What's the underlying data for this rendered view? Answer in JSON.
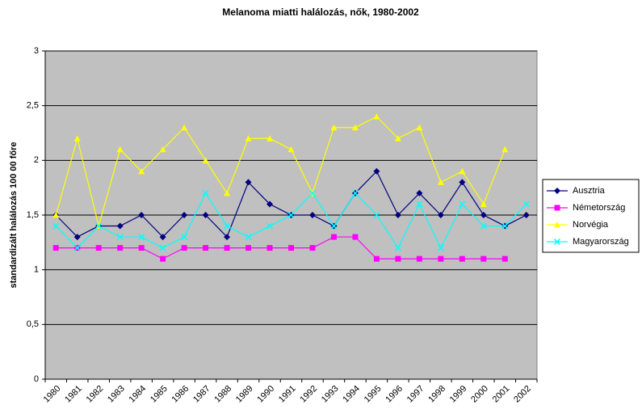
{
  "chart_data": {
    "type": "line",
    "title": "Melanoma miatti halálozás, nők, 1980-2002",
    "y_label": "standardizált halálozás 100 00 főre",
    "categories": [
      "1980",
      "1981",
      "1982",
      "1983",
      "1984",
      "1985",
      "1986",
      "1987",
      "1988",
      "1989",
      "1990",
      "1991",
      "1992",
      "1993",
      "1994",
      "1995",
      "1996",
      "1997",
      "1998",
      "1999",
      "2000",
      "2001",
      "2002"
    ],
    "series": [
      {
        "name": "Ausztria",
        "color": "#000080",
        "marker": "diamond",
        "values": [
          1.5,
          1.3,
          1.4,
          1.4,
          1.5,
          1.3,
          1.5,
          1.5,
          1.3,
          1.8,
          1.6,
          1.5,
          1.5,
          1.4,
          1.7,
          1.9,
          1.5,
          1.7,
          1.5,
          1.8,
          1.5,
          1.4,
          1.5
        ]
      },
      {
        "name": "Németország",
        "color": "#ff00ff",
        "marker": "square",
        "values": [
          1.2,
          1.2,
          1.2,
          1.2,
          1.2,
          1.1,
          1.2,
          1.2,
          1.2,
          1.2,
          1.2,
          1.2,
          1.2,
          1.3,
          1.3,
          1.1,
          1.1,
          1.1,
          1.1,
          1.1,
          1.1,
          1.1,
          null
        ]
      },
      {
        "name": "Norvégia",
        "color": "#ffff00",
        "marker": "triangle",
        "values": [
          1.5,
          2.2,
          1.4,
          2.1,
          1.9,
          2.1,
          2.3,
          2.0,
          1.7,
          2.2,
          2.2,
          2.1,
          1.7,
          2.3,
          2.3,
          2.4,
          2.2,
          2.3,
          1.8,
          1.9,
          1.6,
          2.1,
          null
        ]
      },
      {
        "name": "Magyarország",
        "color": "#00ffff",
        "marker": "x",
        "values": [
          1.4,
          1.2,
          1.4,
          1.3,
          1.3,
          1.2,
          1.3,
          1.7,
          1.4,
          1.3,
          1.4,
          1.5,
          1.7,
          1.4,
          1.7,
          1.5,
          1.2,
          1.6,
          1.2,
          1.6,
          1.4,
          1.4,
          1.6
        ]
      }
    ],
    "ylim": [
      0,
      3
    ],
    "yticks": [
      0,
      {
        "value": 0.5,
        "label": "0,5"
      },
      1,
      {
        "value": 1.5,
        "label": "1,5"
      },
      2,
      {
        "value": 2.5,
        "label": "2,5"
      },
      3
    ],
    "grid": true,
    "plot_background": "#c0c0c0",
    "legend_position": "right"
  }
}
